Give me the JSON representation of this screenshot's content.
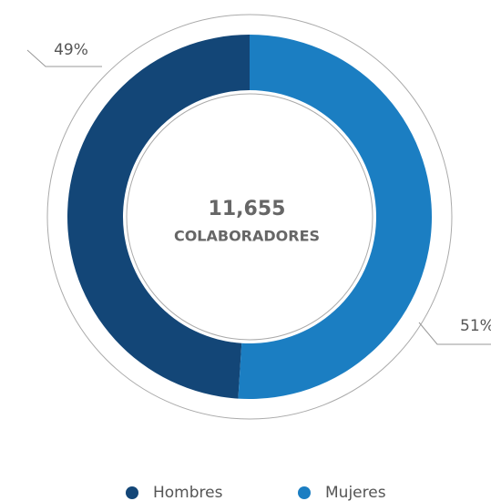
{
  "chart_data": {
    "type": "donut",
    "center_label": "11,655",
    "center_subtitle": "COLABORADORES",
    "categories": [
      "Hombres",
      "Mujeres"
    ],
    "values": [
      49,
      51
    ],
    "value_labels": [
      "49%",
      "51%"
    ],
    "colors": [
      "#134677",
      "#1b7ec2"
    ],
    "legend": "bottom"
  }
}
